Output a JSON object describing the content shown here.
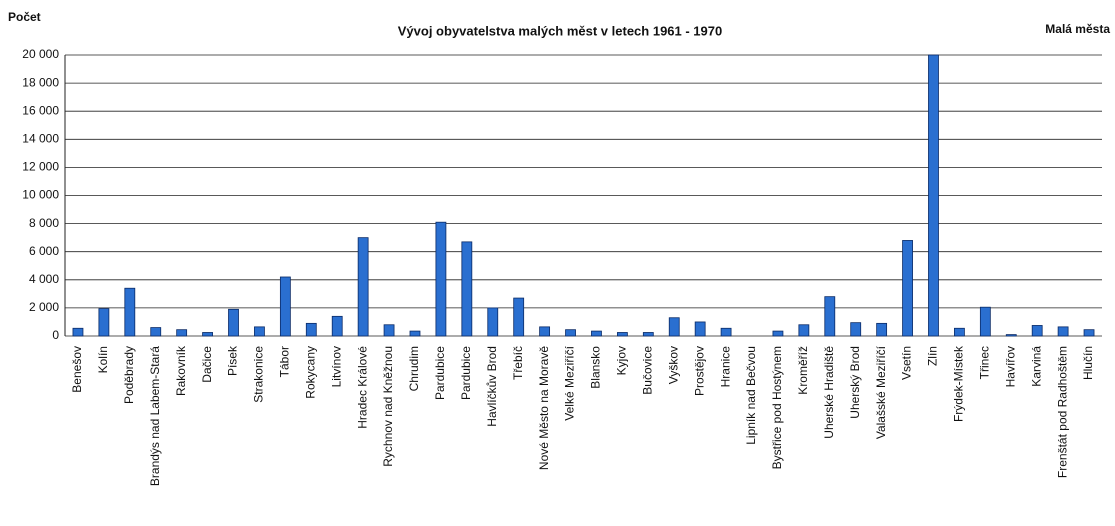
{
  "chart_data": {
    "type": "bar",
    "title": "Vývoj obyvatelstva malých měst v letech 1961 - 1970",
    "y_label": "Počet",
    "legend_label": "Malá města",
    "categories": [
      "Benešov",
      "Kolín",
      "Poděbrady",
      "Brandýs nad Labem-Stará",
      "Rakovník",
      "Dačice",
      "Písek",
      "Strakonice",
      "Tábor",
      "Rokycany",
      "Litvínov",
      "Hradec Králové",
      "Rychnov nad Kněžnou",
      "Chrudim",
      "Pardubice",
      "Pardubice",
      "Havlíčkův Brod",
      "Třebíč",
      "Nové Město na Moravě",
      "Velké Meziříčí",
      "Blansko",
      "Kyjov",
      "Bučovice",
      "Vyškov",
      "Prostějov",
      "Hranice",
      "Lipník nad Bečvou",
      "Bystřice pod Hostýnem",
      "Kroměříž",
      "Uherské Hradiště",
      "Uherský Brod",
      "Valašské Meziříčí",
      "Vsetín",
      "Zlín",
      "Frýdek-Místek",
      "Třinec",
      "Havířov",
      "Karviná",
      "Frenštát pod Radhoštěm",
      "Hlučín"
    ],
    "values": [
      550,
      1950,
      3400,
      600,
      450,
      250,
      1900,
      650,
      4200,
      900,
      1400,
      7000,
      800,
      350,
      8100,
      6700,
      2000,
      2700,
      650,
      450,
      350,
      250,
      250,
      1300,
      1000,
      550,
      0,
      350,
      800,
      2800,
      950,
      900,
      6800,
      20000,
      550,
      2050,
      100,
      750,
      650,
      450
    ],
    "color": "#2a6fd0",
    "ylim": [
      0,
      20000
    ],
    "yticks": [
      0,
      {
        "value": 2000,
        "label": "2 000"
      },
      {
        "value": 4000,
        "label": "4 000"
      },
      {
        "value": 6000,
        "label": "6 000"
      },
      {
        "value": 8000,
        "label": "8 000"
      },
      {
        "value": 10000,
        "label": "10 000"
      },
      {
        "value": 12000,
        "label": "12 000"
      },
      {
        "value": 14000,
        "label": "14 000"
      },
      {
        "value": 16000,
        "label": "16 000"
      },
      {
        "value": 18000,
        "label": "18 000"
      },
      {
        "value": 20000,
        "label": "20 000"
      }
    ],
    "grid": true
  }
}
